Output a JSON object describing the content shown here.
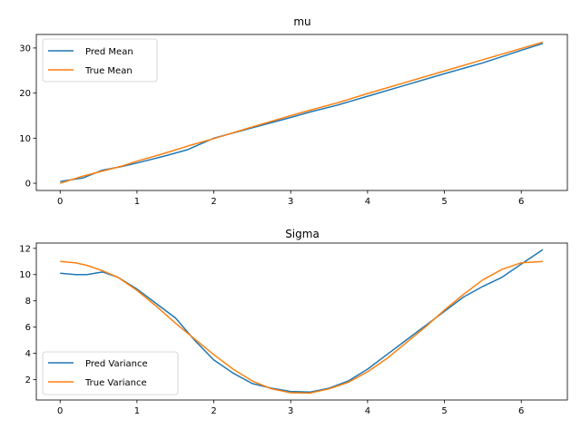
{
  "chart_data": [
    {
      "type": "line",
      "title": "mu",
      "xlabel": "",
      "ylabel": "",
      "xlim": [
        -0.31,
        6.6
      ],
      "ylim": [
        -1.6,
        33.0
      ],
      "xticks": [
        0,
        1,
        2,
        3,
        4,
        5,
        6
      ],
      "yticks": [
        0,
        10,
        20,
        30
      ],
      "grid": false,
      "legend_position": "upper-left",
      "series": [
        {
          "name": "Pred Mean",
          "color": "#1f77b4",
          "x": [
            0.0,
            0.3,
            0.55,
            0.8,
            1.0,
            1.35,
            1.65,
            2.0,
            2.5,
            3.0,
            3.25,
            3.6,
            4.0,
            4.5,
            5.0,
            5.5,
            6.0,
            6.28
          ],
          "y": [
            0.4,
            1.2,
            2.9,
            3.7,
            4.5,
            6.0,
            7.4,
            10.0,
            12.3,
            14.6,
            15.8,
            17.3,
            19.3,
            21.8,
            24.3,
            26.7,
            29.5,
            31.0
          ]
        },
        {
          "name": "True Mean",
          "color": "#ff7f0e",
          "x": [
            0.0,
            0.3,
            0.55,
            0.8,
            1.0,
            1.35,
            1.65,
            2.0,
            2.5,
            3.0,
            3.25,
            3.6,
            4.0,
            4.5,
            5.0,
            5.5,
            6.0,
            6.28
          ],
          "y": [
            0.0,
            1.6,
            2.7,
            3.8,
            4.9,
            6.6,
            8.2,
            9.9,
            12.5,
            15.0,
            16.2,
            17.8,
            19.9,
            22.4,
            24.9,
            27.4,
            29.9,
            31.3
          ]
        }
      ]
    },
    {
      "type": "line",
      "title": "Sigma",
      "xlabel": "",
      "ylabel": "",
      "xlim": [
        -0.31,
        6.6
      ],
      "ylim": [
        0.45,
        12.4
      ],
      "xticks": [
        0,
        1,
        2,
        3,
        4,
        5,
        6
      ],
      "yticks": [
        2,
        4,
        6,
        8,
        10,
        12
      ],
      "grid": false,
      "legend_position": "lower-left",
      "series": [
        {
          "name": "Pred Variance",
          "color": "#1f77b4",
          "x": [
            0.0,
            0.2,
            0.35,
            0.55,
            0.75,
            1.0,
            1.25,
            1.5,
            1.75,
            2.0,
            2.25,
            2.5,
            2.75,
            3.0,
            3.25,
            3.5,
            3.75,
            4.0,
            4.25,
            4.5,
            4.75,
            5.0,
            5.25,
            5.5,
            5.75,
            6.0,
            6.28
          ],
          "y": [
            10.1,
            10.0,
            10.0,
            10.2,
            9.8,
            8.9,
            7.8,
            6.7,
            5.0,
            3.5,
            2.5,
            1.7,
            1.35,
            1.1,
            1.05,
            1.35,
            1.9,
            2.8,
            3.9,
            5.0,
            6.1,
            7.2,
            8.3,
            9.1,
            9.8,
            10.8,
            11.9
          ]
        },
        {
          "name": "True Variance",
          "color": "#ff7f0e",
          "x": [
            0.0,
            0.2,
            0.35,
            0.55,
            0.75,
            1.0,
            1.25,
            1.5,
            1.75,
            2.0,
            2.25,
            2.5,
            2.75,
            3.0,
            3.25,
            3.5,
            3.75,
            4.0,
            4.25,
            4.5,
            4.75,
            5.0,
            5.25,
            5.5,
            5.75,
            6.0,
            6.28
          ],
          "y": [
            11.0,
            10.9,
            10.7,
            10.3,
            9.8,
            8.8,
            7.6,
            6.3,
            5.1,
            3.9,
            2.8,
            1.9,
            1.3,
            1.0,
            0.98,
            1.3,
            1.8,
            2.6,
            3.6,
            4.8,
            6.0,
            7.3,
            8.5,
            9.6,
            10.4,
            10.9,
            11.0
          ]
        }
      ]
    }
  ]
}
